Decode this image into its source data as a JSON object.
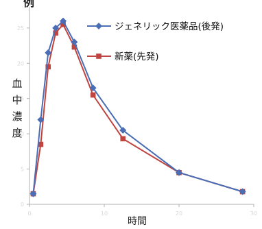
{
  "header": {
    "top_text": "例"
  },
  "chart_data": {
    "type": "line",
    "title": "",
    "xlabel": "時間",
    "ylabel": "血中濃度",
    "ylabel_chars": [
      "血",
      "中",
      "濃",
      "度"
    ],
    "xlim": [
      0,
      30
    ],
    "ylim": [
      0,
      28
    ],
    "x_ticks": [
      0,
      10,
      20,
      30
    ],
    "y_ticks": [
      0,
      5,
      10,
      15,
      20,
      25
    ],
    "grid": false,
    "legend_position": "top-right",
    "series": [
      {
        "name": "ジェネリック医薬品(後発)",
        "color": "#4a6db5",
        "marker": "diamond",
        "x": [
          0.5,
          1.5,
          2.5,
          3.5,
          4.5,
          6,
          8.5,
          12.5,
          20,
          28.5
        ],
        "y": [
          1.5,
          12,
          21.5,
          25,
          26,
          23,
          16.5,
          10.5,
          4.5,
          1.8
        ]
      },
      {
        "name": "新薬(先発)",
        "color": "#c0443f",
        "marker": "square",
        "x": [
          0.5,
          1.5,
          2.5,
          3.5,
          4.5,
          6,
          8.5,
          12.5,
          20,
          28.5
        ],
        "y": [
          1.5,
          8.5,
          19.5,
          24.3,
          25.5,
          22.3,
          15.5,
          9.3,
          4.5,
          1.8
        ]
      }
    ]
  }
}
